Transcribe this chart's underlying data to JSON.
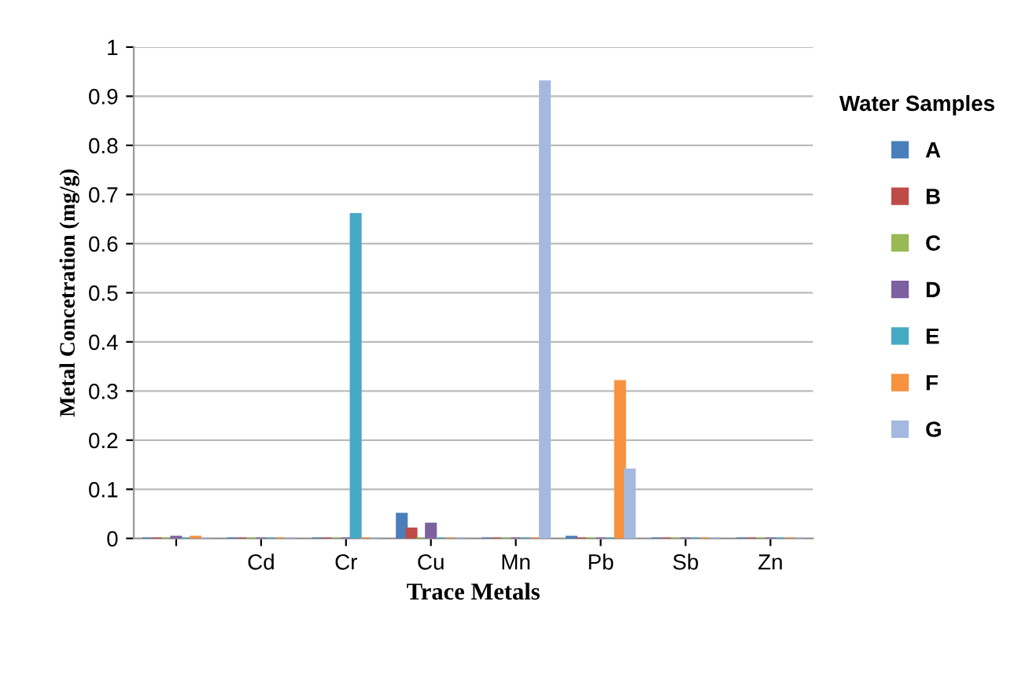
{
  "chart_data": {
    "type": "bar",
    "xlabel": "Trace Metals",
    "ylabel": "Metal Concetration (mg/g)",
    "legend_title": "Water Samples",
    "categories": [
      null,
      "Cd",
      "Cr",
      "Cu",
      "Mn",
      "Pb",
      "Sb",
      "Zn"
    ],
    "series": [
      {
        "name": "A",
        "color": "#4a7ebb",
        "values": [
          0,
          0,
          0,
          0.05,
          0,
          0.003,
          0,
          0
        ]
      },
      {
        "name": "B",
        "color": "#be4b48",
        "values": [
          0,
          0,
          0,
          0.02,
          0,
          0,
          0,
          0
        ]
      },
      {
        "name": "C",
        "color": "#98b954",
        "values": [
          0,
          0,
          0,
          0,
          0,
          0,
          0,
          0
        ]
      },
      {
        "name": "D",
        "color": "#7d60a0",
        "values": [
          0.003,
          0,
          0,
          0.03,
          0,
          0,
          0,
          0
        ]
      },
      {
        "name": "E",
        "color": "#46aac5",
        "values": [
          0,
          0,
          0.66,
          0,
          0,
          0,
          0,
          0
        ]
      },
      {
        "name": "F",
        "color": "#f69240",
        "values": [
          0.003,
          0,
          0,
          0,
          0,
          0.32,
          0,
          0
        ]
      },
      {
        "name": "G",
        "color": "#a5b9e0",
        "values": [
          0,
          0,
          0,
          0,
          0.93,
          0.14,
          0,
          0
        ]
      }
    ],
    "ylim": [
      0,
      1
    ],
    "yticks": [
      0,
      0.1,
      0.2,
      0.3,
      0.4,
      0.5,
      0.6,
      0.7,
      0.8,
      0.9,
      1
    ],
    "grid": "y",
    "legend": "right"
  }
}
